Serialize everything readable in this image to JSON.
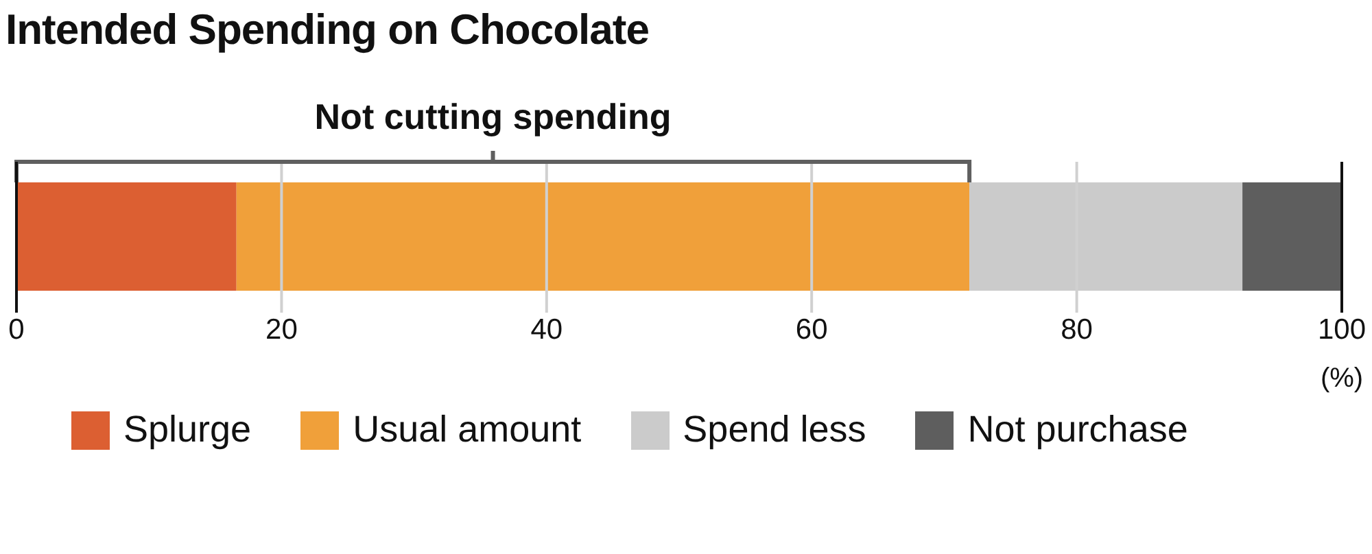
{
  "chart_data": {
    "type": "bar",
    "title": "Intended Spending on Chocolate",
    "xlabel": "(%)",
    "orientation": "horizontal",
    "stacked": true,
    "categories": [
      null
    ],
    "series": [
      {
        "name": "Splurge",
        "color": "#dc5f32",
        "values": [
          16.6
        ]
      },
      {
        "name": "Usual amount",
        "color": "#f0a03a",
        "values": [
          55.3
        ]
      },
      {
        "name": "Spend less",
        "color": "#cbcbcb",
        "values": [
          20.6
        ]
      },
      {
        "name": "Not purchase",
        "color": "#5e5e5e",
        "values": [
          7.5
        ]
      }
    ],
    "xlim": [
      0,
      100
    ],
    "xticks": [
      0,
      20,
      40,
      60,
      80,
      100
    ],
    "grid": "x",
    "legend": "bottom",
    "annotations": [
      "Not cutting spending"
    ]
  }
}
